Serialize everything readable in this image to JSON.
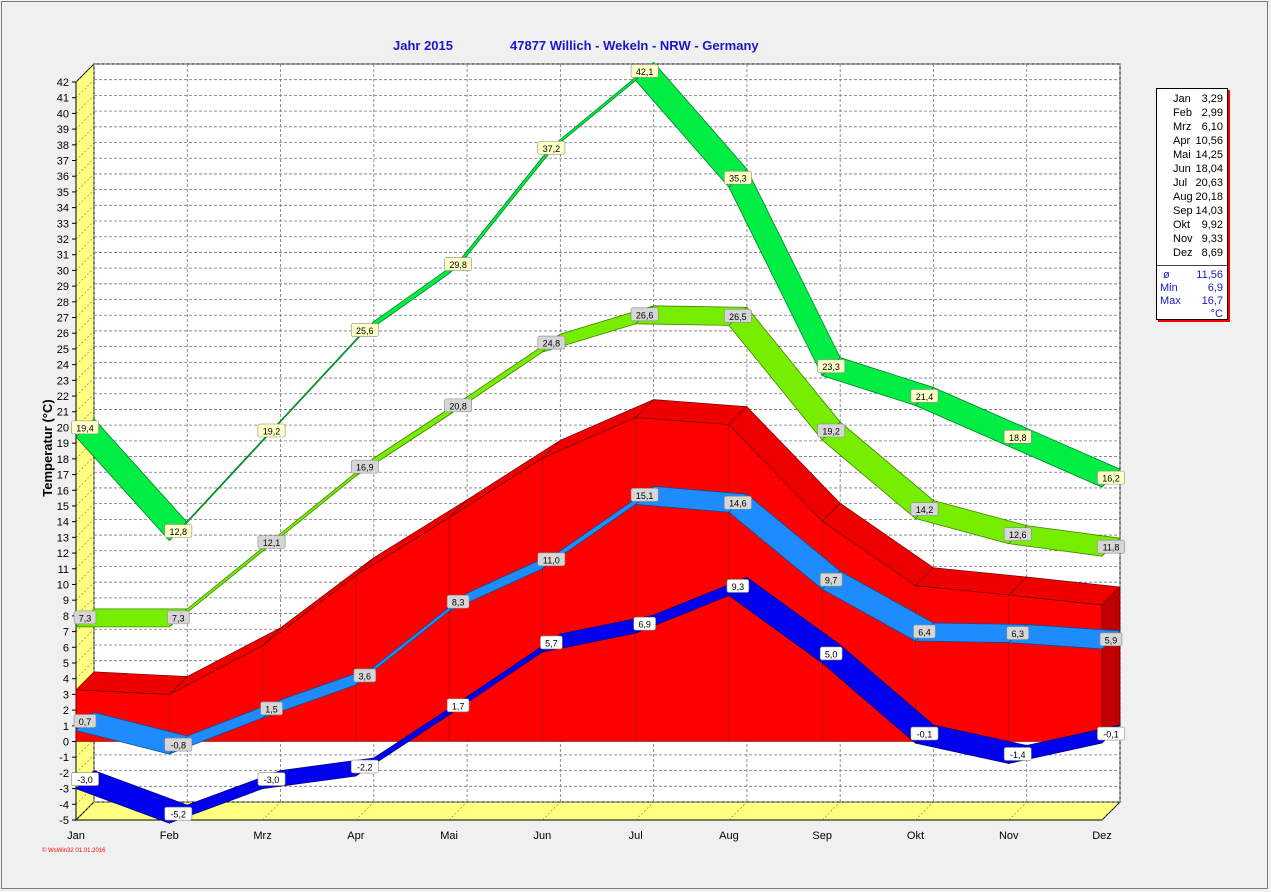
{
  "title": {
    "year": "Jahr  2015",
    "location": "47877 Willich - Wekeln - NRW - Germany"
  },
  "footer": "© WsWin32  01.01.2016",
  "legend": {
    "months": [
      {
        "m": "Jan",
        "v": "3,29"
      },
      {
        "m": "Feb",
        "v": "2,99"
      },
      {
        "m": "Mrz",
        "v": "6,10"
      },
      {
        "m": "Apr",
        "v": "10,56"
      },
      {
        "m": "Mai",
        "v": "14,25"
      },
      {
        "m": "Jun",
        "v": "18,04"
      },
      {
        "m": "Jul",
        "v": "20,63"
      },
      {
        "m": "Aug",
        "v": "20,18"
      },
      {
        "m": "Sep",
        "v": "14,03"
      },
      {
        "m": "Okt",
        "v": "9,92"
      },
      {
        "m": "Nov",
        "v": "9,33"
      },
      {
        "m": "Dez",
        "v": "8,69"
      }
    ],
    "avg_label": "ø",
    "avg_value": "11,56",
    "min_label": "Min",
    "min_value": "6,9",
    "max_label": "Max",
    "max_value": "16,7",
    "unit": "°C"
  },
  "chart_data": {
    "type": "area",
    "ylabel": "Temperatur  (°C)",
    "xlabel": "",
    "categories": [
      "Jan",
      "Feb",
      "Mrz",
      "Apr",
      "Mai",
      "Jun",
      "Jul",
      "Aug",
      "Sep",
      "Okt",
      "Nov",
      "Dez"
    ],
    "ylim": [
      -5,
      42
    ],
    "yticks": [
      "42",
      "41",
      "40",
      "39",
      "38",
      "37",
      "36",
      "35",
      "34",
      "33",
      "32",
      "31",
      "30",
      "29",
      "28",
      "27",
      "26",
      "25",
      "24",
      "23",
      "22",
      "21",
      "20",
      "19",
      "18",
      "17",
      "16",
      "15",
      "14",
      "13",
      "12",
      "11",
      "10",
      "9",
      "8",
      "7",
      "6",
      "5",
      "4",
      "3",
      "2",
      "1",
      "0",
      "-1",
      "-2",
      "-3",
      "-4",
      "-5"
    ],
    "grid": true,
    "three_d": true,
    "series": [
      {
        "key": "abs_max",
        "color": "#00ee44",
        "values": [
          19.4,
          12.8,
          19.2,
          25.6,
          29.8,
          37.2,
          42.1,
          35.3,
          23.3,
          21.4,
          18.8,
          16.2
        ],
        "labels": [
          "19,4",
          "12,8",
          "19,2",
          "25,6",
          "29,8",
          "37,2",
          "42,1",
          "35,3",
          "23,3",
          "21,4",
          "18,8",
          "16,2"
        ]
      },
      {
        "key": "avg_max",
        "color": "#77ee00",
        "values": [
          7.3,
          7.3,
          12.1,
          16.9,
          20.8,
          24.8,
          26.6,
          26.5,
          19.2,
          14.2,
          12.6,
          11.8
        ],
        "labels": [
          "7,3",
          "7,3",
          "12,1",
          "16,9",
          "20,8",
          "24,8",
          "26,6",
          "26,5",
          "19,2",
          "14,2",
          "12,6",
          "11,8"
        ]
      },
      {
        "key": "mean",
        "color": "#ff0000",
        "values": [
          3.29,
          2.99,
          6.1,
          10.56,
          14.25,
          18.04,
          20.63,
          20.18,
          14.03,
          9.92,
          9.33,
          8.69
        ],
        "labels": []
      },
      {
        "key": "avg_min",
        "color": "#1e8cff",
        "values": [
          0.7,
          -0.8,
          1.5,
          3.6,
          8.3,
          11.0,
          15.1,
          14.6,
          9.7,
          6.4,
          6.3,
          5.9
        ],
        "labels": [
          "0,7",
          "-0,8",
          "1,5",
          "3,6",
          "8,3",
          "11,0",
          "15,1",
          "14,6",
          "9,7",
          "6,4",
          "6,3",
          "5,9"
        ]
      },
      {
        "key": "abs_min",
        "color": "#0000ee",
        "values": [
          -3.0,
          -5.2,
          -3.0,
          -2.2,
          1.7,
          5.7,
          6.9,
          9.3,
          5.0,
          -0.1,
          -1.4,
          -0.1
        ],
        "labels": [
          "-3,0",
          "-5,2",
          "-3,0",
          "-2,2",
          "1,7",
          "5,7",
          "6,9",
          "9,3",
          "5,0",
          "-0,1",
          "-1,4",
          "-0,1"
        ]
      }
    ]
  }
}
